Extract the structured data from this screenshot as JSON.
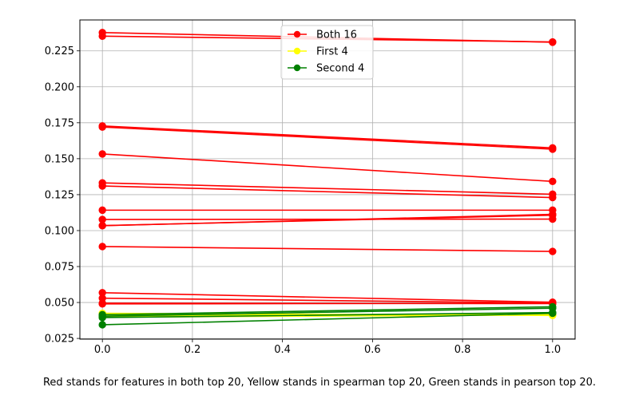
{
  "caption": "Red stands for features in both top 20, Yellow stands in spearman top 20, Green stands in pearson top 20.",
  "chart_data": {
    "type": "line",
    "title": "",
    "xlabel": "",
    "ylabel": "",
    "xlim": [
      -0.05,
      1.05
    ],
    "ylim": [
      0.0245,
      0.2465
    ],
    "x_ticks": [
      0.0,
      0.2,
      0.4,
      0.6,
      0.8,
      1.0
    ],
    "x_tick_labels": [
      "0.0",
      "0.2",
      "0.4",
      "0.6",
      "0.8",
      "1.0"
    ],
    "y_ticks": [
      0.025,
      0.05,
      0.075,
      0.1,
      0.125,
      0.15,
      0.175,
      0.2,
      0.225
    ],
    "y_tick_labels": [
      "0.025",
      "0.050",
      "0.075",
      "0.100",
      "0.125",
      "0.150",
      "0.175",
      "0.200",
      "0.225"
    ],
    "grid": true,
    "legend_position": "top-center",
    "legend": [
      {
        "label": "Both 16",
        "color": "#ff0000"
      },
      {
        "label": "First 4",
        "color": "#ffff00"
      },
      {
        "label": "Second 4",
        "color": "#008000"
      }
    ],
    "groups": [
      {
        "name": "Both 16",
        "color": "#ff0000",
        "lines": [
          [
            0.2377,
            0.231
          ],
          [
            0.2352,
            0.2312
          ],
          [
            0.1728,
            0.1575
          ],
          [
            0.172,
            0.1566
          ],
          [
            0.1533,
            0.1342
          ],
          [
            0.1332,
            0.1253
          ],
          [
            0.131,
            0.123
          ],
          [
            0.1142,
            0.1142
          ],
          [
            0.1077,
            0.108
          ],
          [
            0.1035,
            0.1107
          ],
          [
            0.1034,
            0.1113
          ],
          [
            0.0889,
            0.0855
          ],
          [
            0.0568,
            0.0502
          ],
          [
            0.053,
            0.0497
          ],
          [
            0.0495,
            0.0492
          ],
          [
            0.049,
            0.0495
          ]
        ]
      },
      {
        "name": "First 4",
        "color": "#ffff00",
        "lines": [
          [
            0.0425,
            0.041
          ],
          [
            0.0415,
            0.0418
          ],
          [
            0.0405,
            0.0422
          ],
          [
            0.0398,
            0.0413
          ]
        ]
      },
      {
        "name": "Second 4",
        "color": "#008000",
        "lines": [
          [
            0.0415,
            0.047
          ],
          [
            0.0405,
            0.046
          ],
          [
            0.0395,
            0.043
          ],
          [
            0.0345,
            0.0425
          ]
        ]
      }
    ]
  }
}
